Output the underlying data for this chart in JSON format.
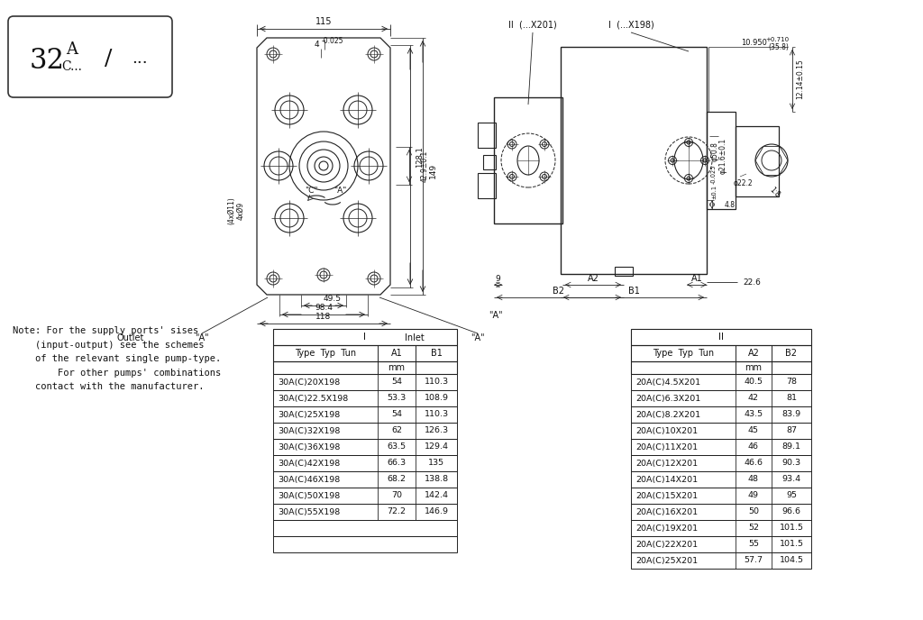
{
  "bg_color": "#ffffff",
  "note_text": "Note: For the supply ports' sises\n    (input-output) see the schemes\n    of the relevant single pump-type.\n        For other pumps' combinations\n    contact with the manufacturer.",
  "table1_header_top": "I",
  "table1_col_headers": [
    "Type  Typ  Tun",
    "A1",
    "B1"
  ],
  "table1_data": [
    [
      "30A(C)20X198",
      "54",
      "110.3"
    ],
    [
      "30A(C)22.5X198",
      "53.3",
      "108.9"
    ],
    [
      "30A(C)25X198",
      "54",
      "110.3"
    ],
    [
      "30A(C)32X198",
      "62",
      "126.3"
    ],
    [
      "30A(C)36X198",
      "63.5",
      "129.4"
    ],
    [
      "30A(C)42X198",
      "66.3",
      "135"
    ],
    [
      "30A(C)46X198",
      "68.2",
      "138.8"
    ],
    [
      "30A(C)50X198",
      "70",
      "142.4"
    ],
    [
      "30A(C)55X198",
      "72.2",
      "146.9"
    ]
  ],
  "table2_header_top": "II",
  "table2_col_headers": [
    "Type  Typ  Tun",
    "A2",
    "B2"
  ],
  "table2_data": [
    [
      "20A(C)4.5X201",
      "40.5",
      "78"
    ],
    [
      "20A(C)6.3X201",
      "42",
      "81"
    ],
    [
      "20A(C)8.2X201",
      "43.5",
      "83.9"
    ],
    [
      "20A(C)10X201",
      "45",
      "87"
    ],
    [
      "20A(C)11X201",
      "46",
      "89.1"
    ],
    [
      "20A(C)12X201",
      "46.6",
      "90.3"
    ],
    [
      "20A(C)14X201",
      "48",
      "93.4"
    ],
    [
      "20A(C)15X201",
      "49",
      "95"
    ],
    [
      "20A(C)16X201",
      "50",
      "96.6"
    ],
    [
      "20A(C)19X201",
      "52",
      "101.5"
    ],
    [
      "20A(C)22X201",
      "55",
      "101.5"
    ],
    [
      "20A(C)25X201",
      "57.7",
      "104.5"
    ]
  ]
}
